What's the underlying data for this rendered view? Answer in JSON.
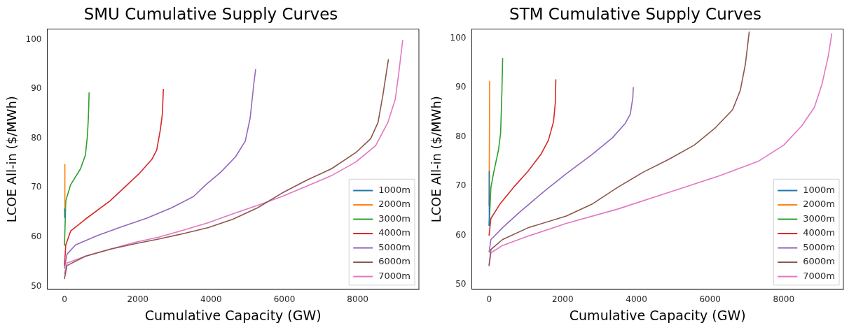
{
  "chart_data": [
    {
      "type": "line",
      "title": "SMU Cumulative Supply Curves",
      "xlabel": "Cumulative Capacity (GW)",
      "ylabel": "LCOE All-in ($/MWh)",
      "xlim": [
        -470,
        9670
      ],
      "ylim": [
        49.4,
        102.1
      ],
      "xticks": [
        0,
        2000,
        4000,
        6000,
        8000
      ],
      "yticks": [
        50,
        60,
        70,
        80,
        90,
        100
      ],
      "grid": false,
      "legend": "bottom right",
      "marker": "none",
      "line_style": "solid",
      "series": [
        {
          "name": "1000m",
          "color": "#1f77b4",
          "x": [
            0,
            5
          ],
          "values": [
            64.0,
            65.7
          ]
        },
        {
          "name": "2000m",
          "color": "#ff7f0e",
          "x": [
            0,
            10
          ],
          "values": [
            65.5,
            74.7
          ]
        },
        {
          "name": "3000m",
          "color": "#2ca02c",
          "x": [
            0,
            34,
            168,
            436,
            570,
            624,
            651,
            671
          ],
          "values": [
            58.3,
            67.3,
            70.6,
            73.8,
            76.6,
            80.4,
            84.1,
            89.2
          ]
        },
        {
          "name": "4000m",
          "color": "#d62728",
          "x": [
            0,
            34,
            168,
            570,
            1241,
            1644,
            2047,
            2382,
            2516,
            2617,
            2671,
            2697
          ],
          "values": [
            54.3,
            58.4,
            61.2,
            63.6,
            67.3,
            70.1,
            72.9,
            75.7,
            77.6,
            81.8,
            85.0,
            89.9
          ]
        },
        {
          "name": "5000m",
          "color": "#9467bd",
          "x": [
            0,
            67,
            302,
            906,
            1577,
            2248,
            2919,
            3523,
            3859,
            4261,
            4664,
            4932,
            5066,
            5167,
            5214
          ],
          "values": [
            53.7,
            56.5,
            58.4,
            60.3,
            62.1,
            63.8,
            65.9,
            68.2,
            70.6,
            73.1,
            76.2,
            79.4,
            84.1,
            91.1,
            93.9
          ]
        },
        {
          "name": "6000m",
          "color": "#8c564b",
          "x": [
            0,
            67,
            570,
            1241,
            1912,
            2583,
            3254,
            3926,
            4597,
            5267,
            5938,
            6609,
            7280,
            7951,
            8354,
            8555,
            8689,
            8837
          ],
          "values": [
            51.6,
            54.2,
            56.1,
            57.5,
            58.6,
            59.6,
            60.7,
            61.9,
            63.6,
            65.9,
            68.9,
            71.5,
            73.8,
            77.1,
            79.9,
            83.2,
            88.8,
            95.9
          ]
        },
        {
          "name": "7000m",
          "color": "#e377c2",
          "x": [
            0,
            67,
            570,
            1241,
            1912,
            2583,
            3254,
            3926,
            4597,
            5267,
            5938,
            6609,
            7280,
            7951,
            8488,
            8824,
            9025,
            9126,
            9227
          ],
          "values": [
            52.6,
            54.7,
            56.1,
            57.5,
            58.9,
            60.0,
            61.4,
            62.9,
            64.7,
            66.4,
            68.2,
            70.3,
            72.4,
            75.2,
            78.5,
            83.2,
            87.9,
            93.5,
            99.8
          ]
        }
      ]
    },
    {
      "type": "line",
      "title": "STM Cumulative Supply Curves",
      "xlabel": "Cumulative Capacity (GW)",
      "ylabel": "LCOE All-in ($/MWh)",
      "xlim": [
        -470,
        9620
      ],
      "ylim": [
        49.0,
        101.9
      ],
      "xticks": [
        0,
        2000,
        4000,
        6000,
        8000
      ],
      "yticks": [
        50,
        60,
        70,
        80,
        90,
        100
      ],
      "grid": false,
      "legend": "bottom right",
      "marker": "none",
      "line_style": "solid",
      "series": [
        {
          "name": "1000m",
          "color": "#1f77b4",
          "x": [
            0,
            5
          ],
          "values": [
            62.0,
            73.0
          ]
        },
        {
          "name": "2000m",
          "color": "#ff7f0e",
          "x": [
            0,
            15
          ],
          "values": [
            66.0,
            91.3
          ]
        },
        {
          "name": "3000m",
          "color": "#2ca02c",
          "x": [
            0,
            49,
            118,
            257,
            312,
            347,
            368
          ],
          "values": [
            62.0,
            69.7,
            72.5,
            77.4,
            80.7,
            88.9,
            95.9
          ]
        },
        {
          "name": "4000m",
          "color": "#d62728",
          "x": [
            0,
            49,
            292,
            708,
            1055,
            1403,
            1611,
            1750,
            1799,
            1812
          ],
          "values": [
            60.0,
            63.4,
            66.3,
            70.1,
            73.0,
            76.4,
            79.3,
            83.1,
            87.0,
            91.6
          ]
        },
        {
          "name": "5000m",
          "color": "#9467bd",
          "x": [
            0,
            49,
            361,
            847,
            1542,
            2097,
            2792,
            3347,
            3694,
            3833,
            3903,
            3916
          ],
          "values": [
            56.6,
            59.1,
            61.5,
            64.8,
            69.2,
            72.5,
            76.4,
            79.8,
            82.7,
            84.6,
            88.0,
            90.0
          ]
        },
        {
          "name": "6000m",
          "color": "#8c564b",
          "x": [
            0,
            49,
            361,
            1055,
            2097,
            2792,
            3486,
            4180,
            4875,
            5569,
            6125,
            6611,
            6819,
            6958,
            7062
          ],
          "values": [
            53.8,
            57.1,
            59.1,
            61.5,
            63.9,
            66.3,
            69.7,
            72.8,
            75.4,
            78.3,
            81.7,
            85.5,
            89.4,
            94.7,
            101.3
          ]
        },
        {
          "name": "7000m",
          "color": "#e377c2",
          "x": [
            0,
            49,
            361,
            1055,
            2097,
            3486,
            4875,
            6264,
            7305,
            8000,
            8486,
            8833,
            9042,
            9215,
            9305
          ],
          "values": [
            54.0,
            56.4,
            57.9,
            59.8,
            62.4,
            65.3,
            68.7,
            72.1,
            75.0,
            78.3,
            82.2,
            86.0,
            90.8,
            96.6,
            101.0
          ]
        }
      ]
    }
  ]
}
